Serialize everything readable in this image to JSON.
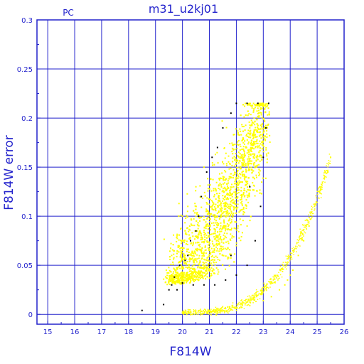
{
  "chart_data": {
    "type": "scatter",
    "title": "m31_u2kj01",
    "corner_label": "PC",
    "xlabel": "F814W",
    "ylabel": "F814W error",
    "xlim": [
      14.6,
      26
    ],
    "ylim": [
      -0.01,
      0.3
    ],
    "grid": true,
    "x_ticks": [
      "15",
      "16",
      "17",
      "18",
      "19",
      "20",
      "21",
      "22",
      "23",
      "24",
      "25",
      "26"
    ],
    "y_ticks": [
      "0",
      "0.05",
      "0.1",
      "0.15",
      "0.2",
      "0.25",
      "0.3"
    ],
    "colors": {
      "axis": "#2222cc",
      "grid": "#2222cc",
      "primary": "#ffff00",
      "secondary": "#000000"
    },
    "series": [
      {
        "color": "#000000",
        "points": [
          [
            18.5,
            0.004
          ],
          [
            19.3,
            0.01
          ],
          [
            19.5,
            0.025
          ],
          [
            19.7,
            0.038
          ],
          [
            19.9,
            0.05
          ],
          [
            20.1,
            0.055
          ],
          [
            20.3,
            0.075
          ],
          [
            20.5,
            0.085
          ],
          [
            20.6,
            0.1
          ],
          [
            20.7,
            0.12
          ],
          [
            20.9,
            0.145
          ],
          [
            21.1,
            0.16
          ],
          [
            21.3,
            0.17
          ],
          [
            21.5,
            0.19
          ],
          [
            21.8,
            0.205
          ],
          [
            22.0,
            0.215
          ],
          [
            22.4,
            0.215
          ],
          [
            22.8,
            0.215
          ],
          [
            23.2,
            0.215
          ],
          [
            23.0,
            0.16
          ],
          [
            22.9,
            0.11
          ],
          [
            22.7,
            0.075
          ],
          [
            22.4,
            0.05
          ],
          [
            22.0,
            0.04
          ],
          [
            21.6,
            0.035
          ],
          [
            21.2,
            0.03
          ],
          [
            20.8,
            0.03
          ],
          [
            20.4,
            0.03
          ],
          [
            20.0,
            0.032
          ],
          [
            19.8,
            0.025
          ],
          [
            21.0,
            0.05
          ],
          [
            21.8,
            0.06
          ],
          [
            22.5,
            0.13
          ],
          [
            23.1,
            0.19
          ],
          [
            20.2,
            0.06
          ],
          [
            19.6,
            0.03
          ]
        ]
      },
      {
        "color": "#ffff00",
        "points": [
          [
            19.4,
            0.045
          ],
          [
            19.6,
            0.06
          ],
          [
            19.8,
            0.08
          ],
          [
            20.0,
            0.1
          ],
          [
            20.2,
            0.11
          ],
          [
            20.5,
            0.13
          ],
          [
            20.8,
            0.15
          ],
          [
            21.0,
            0.09
          ],
          [
            21.3,
            0.1
          ],
          [
            21.6,
            0.11
          ],
          [
            21.9,
            0.13
          ],
          [
            22.2,
            0.16
          ],
          [
            22.5,
            0.19
          ],
          [
            22.8,
            0.21
          ],
          [
            21.1,
            0.05
          ],
          [
            21.5,
            0.06
          ],
          [
            22.0,
            0.07
          ],
          [
            22.4,
            0.09
          ],
          [
            20.4,
            0.06
          ],
          [
            20.7,
            0.04
          ],
          [
            20.0,
            0.002
          ],
          [
            20.5,
            0.002
          ],
          [
            21.0,
            0.003
          ],
          [
            21.5,
            0.004
          ],
          [
            22.0,
            0.006
          ],
          [
            22.5,
            0.009
          ],
          [
            23.0,
            0.014
          ],
          [
            23.3,
            0.018
          ],
          [
            23.6,
            0.025
          ],
          [
            23.9,
            0.035
          ],
          [
            24.1,
            0.045
          ],
          [
            24.3,
            0.06
          ],
          [
            24.5,
            0.075
          ],
          [
            24.7,
            0.09
          ],
          [
            24.9,
            0.11
          ],
          [
            25.1,
            0.13
          ],
          [
            25.3,
            0.145
          ],
          [
            25.5,
            0.16
          ],
          [
            24.0,
            0.04
          ],
          [
            23.8,
            0.03
          ]
        ]
      }
    ]
  }
}
